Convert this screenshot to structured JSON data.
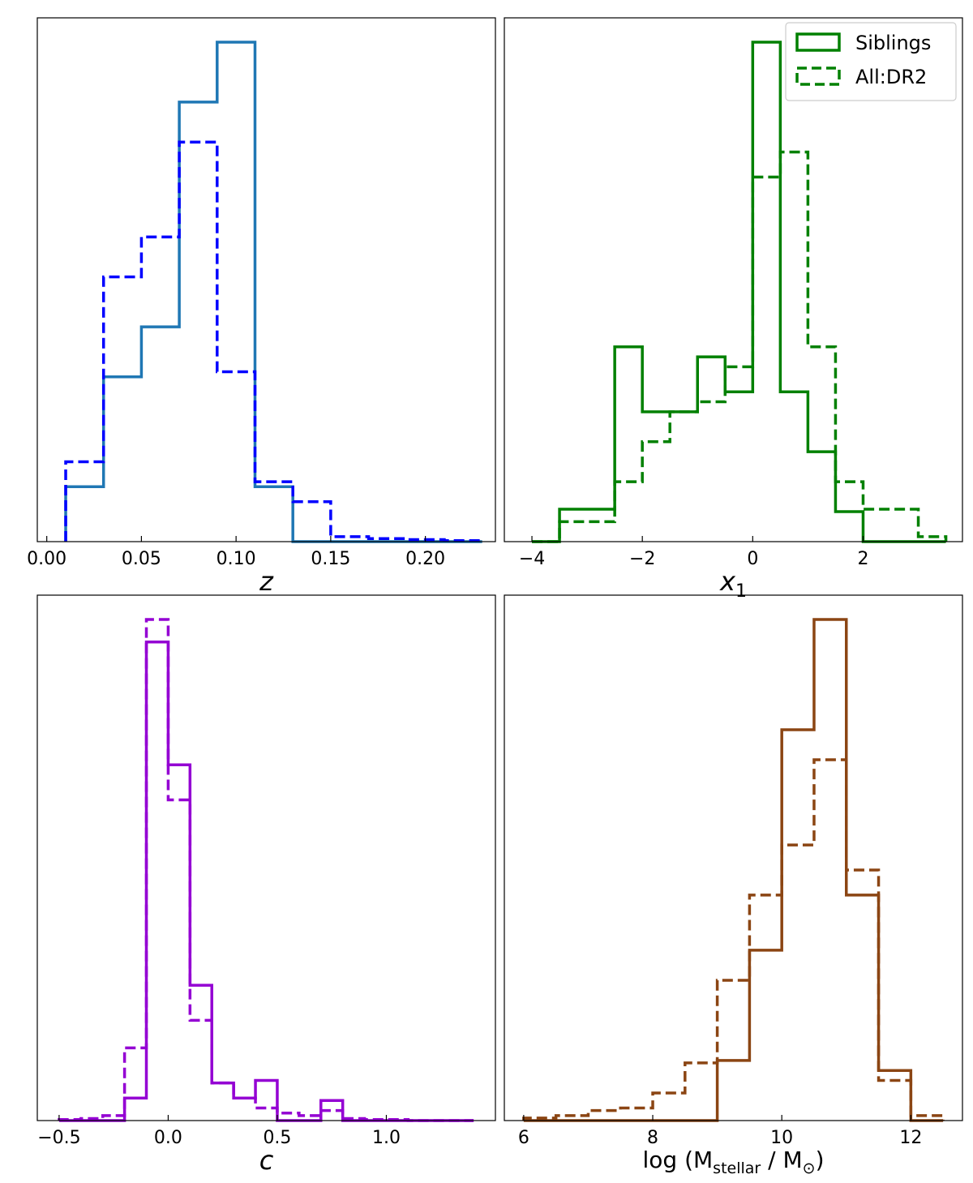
{
  "chart_data": [
    {
      "id": "z",
      "type": "histogram",
      "xlabel": "z",
      "xlim": [
        -0.005,
        0.237
      ],
      "ylim": [
        0,
        1.0
      ],
      "y_ticks_visible": false,
      "xticks": [
        0.0,
        0.05,
        0.1,
        0.15,
        0.2
      ],
      "xtick_labels": [
        "0.00",
        "0.05",
        "0.10",
        "0.15",
        "0.20"
      ],
      "series": [
        {
          "style": "solid",
          "color": "#1f77b4",
          "bin_edges": [
            0.01,
            0.03,
            0.05,
            0.07,
            0.09,
            0.11,
            0.13,
            0.15,
            0.17,
            0.19,
            0.21,
            0.23
          ],
          "values": [
            0.11,
            0.33,
            0.43,
            0.88,
            1.0,
            0.11,
            0.0,
            0.0,
            0.0,
            0.0,
            0.0
          ]
        },
        {
          "style": "dashed",
          "color": "#0000ff",
          "bin_edges": [
            0.01,
            0.03,
            0.05,
            0.07,
            0.09,
            0.11,
            0.13,
            0.15,
            0.17,
            0.19,
            0.21,
            0.23
          ],
          "values": [
            0.16,
            0.53,
            0.61,
            0.8,
            0.34,
            0.12,
            0.08,
            0.01,
            0.006,
            0.004,
            0.002
          ]
        }
      ]
    },
    {
      "id": "x1",
      "type": "histogram",
      "xlabel": "x1",
      "xlim": [
        -4.5,
        3.8
      ],
      "ylim": [
        0,
        1.0
      ],
      "y_ticks_visible": false,
      "xticks": [
        -4,
        -2,
        0,
        2
      ],
      "xtick_labels": [
        "−4",
        "−2",
        "0",
        "2"
      ],
      "legend": {
        "position": "upper right",
        "entries": [
          {
            "label": "Siblings",
            "style": "solid"
          },
          {
            "label": "All:DR2",
            "style": "dashed"
          }
        ]
      },
      "series": [
        {
          "style": "solid",
          "color": "#008000",
          "bin_edges": [
            -4.0,
            -3.5,
            -3.0,
            -2.5,
            -2.0,
            -1.5,
            -1.0,
            -0.5,
            0.0,
            0.5,
            1.0,
            1.5,
            2.0,
            2.5,
            3.0,
            3.5
          ],
          "values": [
            0.0,
            0.065,
            0.065,
            0.39,
            0.26,
            0.26,
            0.37,
            0.3,
            1.0,
            0.3,
            0.18,
            0.06,
            0.0,
            0.0,
            0.0
          ]
        },
        {
          "style": "dashed",
          "color": "#008000",
          "bin_edges": [
            -4.0,
            -3.5,
            -3.0,
            -2.5,
            -2.0,
            -1.5,
            -1.0,
            -0.5,
            0.0,
            0.5,
            1.0,
            1.5,
            2.0,
            2.5,
            3.0,
            3.5
          ],
          "values": [
            0.0,
            0.04,
            0.04,
            0.12,
            0.2,
            0.26,
            0.28,
            0.35,
            0.73,
            0.78,
            0.39,
            0.12,
            0.065,
            0.065,
            0.01
          ]
        }
      ]
    },
    {
      "id": "c",
      "type": "histogram",
      "xlabel": "c",
      "xlim": [
        -0.6,
        1.5
      ],
      "ylim": [
        0,
        1.0
      ],
      "y_ticks_visible": false,
      "xticks": [
        -0.5,
        0.0,
        0.5,
        1.0
      ],
      "xtick_labels": [
        "−0.5",
        "0.0",
        "0.5",
        "1.0"
      ],
      "series": [
        {
          "style": "solid",
          "color": "#9400d3",
          "bin_edges": [
            -0.5,
            -0.4,
            -0.3,
            -0.2,
            -0.1,
            0.0,
            0.1,
            0.2,
            0.3,
            0.4,
            0.5,
            0.6,
            0.7,
            0.8,
            0.9,
            1.0,
            1.1,
            1.2,
            1.3,
            1.4
          ],
          "values": [
            0.0,
            0.0,
            0.0,
            0.045,
            0.955,
            0.71,
            0.27,
            0.075,
            0.045,
            0.08,
            0.0,
            0.0,
            0.04,
            0.0,
            0.0,
            0.0,
            0.0,
            0.0,
            0.0
          ]
        },
        {
          "style": "dashed",
          "color": "#9400d3",
          "bin_edges": [
            -0.5,
            -0.4,
            -0.3,
            -0.2,
            -0.1,
            0.0,
            0.1,
            0.2,
            0.3,
            0.4,
            0.5,
            0.6,
            0.7,
            0.8,
            0.9,
            1.0,
            1.1,
            1.2,
            1.3,
            1.4
          ],
          "values": [
            0.002,
            0.004,
            0.01,
            0.145,
            1.0,
            0.64,
            0.2,
            0.075,
            0.045,
            0.025,
            0.015,
            0.01,
            0.02,
            0.004,
            0.002,
            0.002,
            0.0,
            0.0,
            0.0
          ]
        }
      ]
    },
    {
      "id": "mass",
      "type": "histogram",
      "xlabel": "log (M_stellar / M_⊙)",
      "xlim": [
        5.7,
        12.8
      ],
      "ylim": [
        0,
        1.0
      ],
      "y_ticks_visible": false,
      "xticks": [
        6,
        8,
        10,
        12
      ],
      "xtick_labels": [
        "6",
        "8",
        "10",
        "12"
      ],
      "series": [
        {
          "style": "solid",
          "color": "#8b4513",
          "bin_edges": [
            6.0,
            6.5,
            7.0,
            7.5,
            8.0,
            8.5,
            9.0,
            9.5,
            10.0,
            10.5,
            11.0,
            11.5,
            12.0,
            12.5
          ],
          "values": [
            0.0,
            0.0,
            0.0,
            0.0,
            0.0,
            0.0,
            0.12,
            0.34,
            0.78,
            1.0,
            0.45,
            0.1,
            0.0
          ]
        },
        {
          "style": "dashed",
          "color": "#8b4513",
          "bin_edges": [
            6.0,
            6.5,
            7.0,
            7.5,
            8.0,
            8.5,
            9.0,
            9.5,
            10.0,
            10.5,
            11.0,
            11.5,
            12.0,
            12.5
          ],
          "values": [
            0.005,
            0.01,
            0.02,
            0.025,
            0.055,
            0.115,
            0.28,
            0.45,
            0.55,
            0.72,
            0.5,
            0.08,
            0.01
          ]
        }
      ]
    }
  ]
}
